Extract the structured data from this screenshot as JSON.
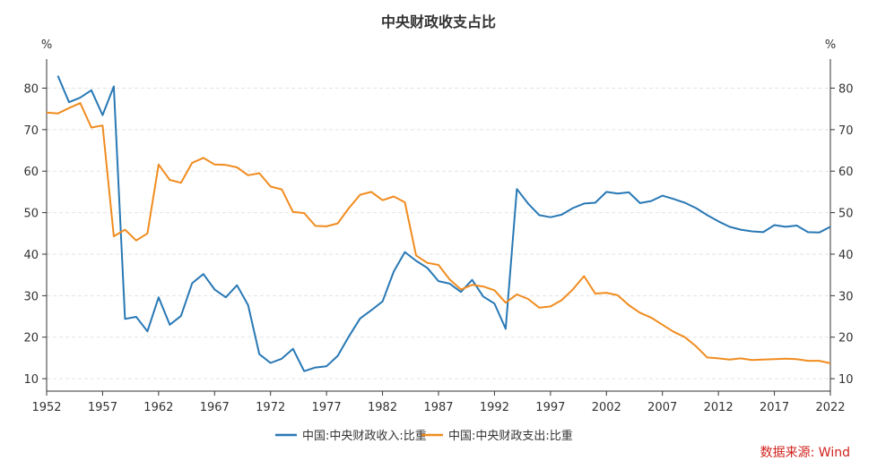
{
  "chart_data": {
    "type": "line",
    "title": "中央财政收支占比",
    "y_unit_left": "%",
    "y_unit_right": "%",
    "xlim": [
      1952,
      2022
    ],
    "ylim": [
      7,
      87
    ],
    "x_ticks": [
      1952,
      1957,
      1962,
      1967,
      1972,
      1977,
      1982,
      1987,
      1992,
      1997,
      2002,
      2007,
      2012,
      2017,
      2022
    ],
    "y_ticks": [
      10,
      20,
      30,
      40,
      50,
      60,
      70,
      80
    ],
    "grid": true,
    "legend_position": "bottom-center",
    "source": "数据来源: Wind",
    "series": [
      {
        "name": "中国:中央财政收入:比重",
        "color": "#2878b5",
        "x": [
          1953,
          1954,
          1955,
          1956,
          1957,
          1958,
          1959,
          1960,
          1961,
          1962,
          1963,
          1964,
          1965,
          1966,
          1967,
          1968,
          1969,
          1970,
          1971,
          1972,
          1973,
          1974,
          1975,
          1976,
          1977,
          1978,
          1979,
          1980,
          1981,
          1982,
          1983,
          1984,
          1985,
          1986,
          1987,
          1988,
          1989,
          1990,
          1991,
          1992,
          1993,
          1994,
          1995,
          1996,
          1997,
          1998,
          1999,
          2000,
          2001,
          2002,
          2003,
          2004,
          2005,
          2006,
          2007,
          2008,
          2009,
          2010,
          2011,
          2012,
          2013,
          2014,
          2015,
          2016,
          2017,
          2018,
          2019,
          2020,
          2021,
          2022
        ],
        "values": [
          83.0,
          76.6,
          77.7,
          79.5,
          73.5,
          80.4,
          24.4,
          24.9,
          21.4,
          29.6,
          23.0,
          25.1,
          33.0,
          35.2,
          31.5,
          29.6,
          32.5,
          27.7,
          15.9,
          13.8,
          14.8,
          17.2,
          11.8,
          12.7,
          13.0,
          15.5,
          20.2,
          24.5,
          26.5,
          28.6,
          35.8,
          40.5,
          38.4,
          36.7,
          33.5,
          32.9,
          30.9,
          33.8,
          29.8,
          28.1,
          22.0,
          55.7,
          52.2,
          49.4,
          48.9,
          49.5,
          51.1,
          52.2,
          52.4,
          55.0,
          54.6,
          54.9,
          52.3,
          52.8,
          54.1,
          53.3,
          52.4,
          51.1,
          49.4,
          47.9,
          46.6,
          45.9,
          45.5,
          45.3,
          47.0,
          46.6,
          46.9,
          45.3,
          45.2,
          46.6
        ]
      },
      {
        "name": "中国:中央财政支出:比重",
        "color": "#f08c1f",
        "x": [
          1952,
          1953,
          1954,
          1955,
          1956,
          1957,
          1958,
          1959,
          1960,
          1961,
          1962,
          1963,
          1964,
          1965,
          1966,
          1967,
          1968,
          1969,
          1970,
          1971,
          1972,
          1973,
          1974,
          1975,
          1976,
          1977,
          1978,
          1979,
          1980,
          1981,
          1982,
          1983,
          1984,
          1985,
          1986,
          1987,
          1988,
          1989,
          1990,
          1991,
          1992,
          1993,
          1994,
          1995,
          1996,
          1997,
          1998,
          1999,
          2000,
          2001,
          2002,
          2003,
          2004,
          2005,
          2006,
          2007,
          2008,
          2009,
          2010,
          2011,
          2012,
          2013,
          2014,
          2015,
          2016,
          2017,
          2018,
          2019,
          2020,
          2021,
          2022
        ],
        "values": [
          74.1,
          73.9,
          75.2,
          76.4,
          70.5,
          71.0,
          44.3,
          45.9,
          43.3,
          45.0,
          61.6,
          57.9,
          57.2,
          62.0,
          63.2,
          61.6,
          61.5,
          60.9,
          59.0,
          59.5,
          56.3,
          55.6,
          50.2,
          49.9,
          46.8,
          46.7,
          47.4,
          51.1,
          54.3,
          55.0,
          53.0,
          53.9,
          52.5,
          39.7,
          37.9,
          37.4,
          33.9,
          31.5,
          32.6,
          32.2,
          31.3,
          28.3,
          30.3,
          29.2,
          27.1,
          27.4,
          28.9,
          31.5,
          34.7,
          30.5,
          30.7,
          30.1,
          27.7,
          25.9,
          24.7,
          23.0,
          21.3,
          20.0,
          17.8,
          15.1,
          14.9,
          14.6,
          14.9,
          14.5,
          14.6,
          14.7,
          14.8,
          14.7,
          14.3,
          14.3,
          13.7
        ]
      }
    ]
  }
}
